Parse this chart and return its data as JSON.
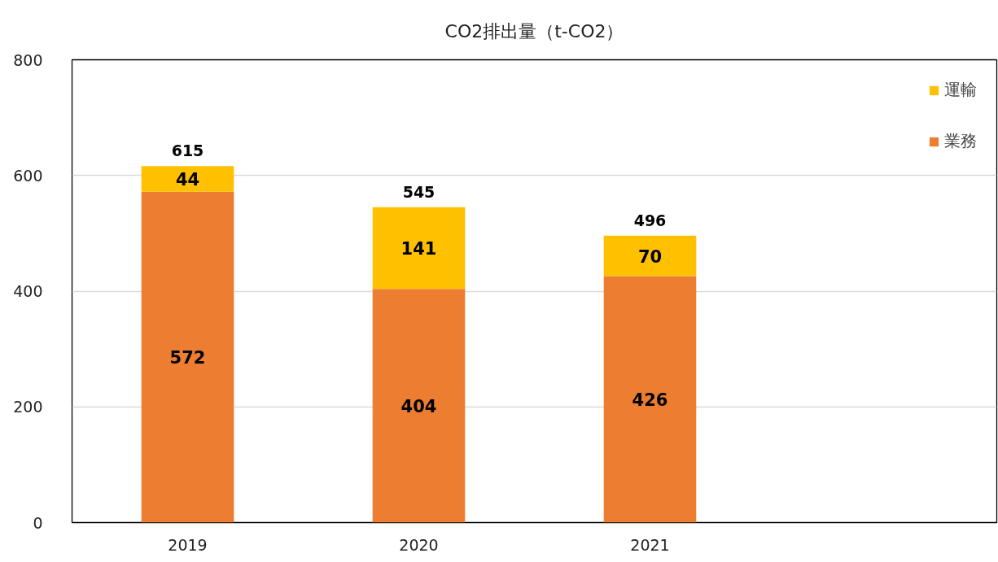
{
  "chart_data": {
    "type": "bar",
    "title": "CO2排出量（t-CO2）",
    "categories": [
      "2019",
      "2020",
      "2021",
      null
    ],
    "stacked": true,
    "series": [
      {
        "name": "業務",
        "color": "#ed7d31",
        "values": [
          572,
          404,
          426,
          null
        ]
      },
      {
        "name": "運輸",
        "color": "#ffc000",
        "values": [
          44,
          141,
          70,
          null
        ]
      }
    ],
    "data_labels": true,
    "totals": [
      "615",
      "545",
      "496",
      null
    ],
    "ylim": [
      0,
      800
    ],
    "yticks": [
      0,
      200,
      400,
      600,
      800
    ],
    "grid": "y",
    "legend": "top right"
  }
}
